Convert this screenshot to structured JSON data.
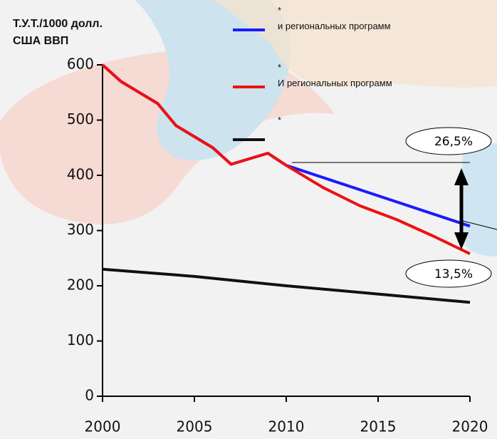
{
  "chart_data": {
    "type": "line",
    "y_label": "Т.У.Т./1000 долл.\nСША ВВП",
    "xlim": [
      2000,
      2020
    ],
    "xticks": [
      2000,
      2005,
      2010,
      2015,
      2020
    ],
    "ylim": [
      0,
      600
    ],
    "yticks": [
      0,
      100,
      200,
      300,
      400,
      500,
      600
    ],
    "series": [
      {
        "name": "*\nи региональных программ",
        "color": "#1a1aff",
        "x": [
          2000,
          2001,
          2002,
          2003,
          2004,
          2005,
          2006,
          2007,
          2008,
          2009,
          2010,
          2020
        ],
        "values": [
          600,
          570,
          550,
          530,
          490,
          470,
          450,
          420,
          430,
          440,
          418,
          308
        ]
      },
      {
        "name": "*\nИ региональных программ",
        "color": "#ee1111",
        "x": [
          2000,
          2001,
          2002,
          2003,
          2004,
          2005,
          2006,
          2007,
          2008,
          2009,
          2010,
          2012,
          2014,
          2016,
          2018,
          2020
        ],
        "values": [
          600,
          570,
          550,
          530,
          490,
          470,
          450,
          420,
          430,
          440,
          418,
          378,
          345,
          320,
          290,
          258
        ]
      },
      {
        "name": "*",
        "color": "#111111",
        "x": [
          2000,
          2005,
          2010,
          2015,
          2020
        ],
        "values": [
          230,
          217,
          200,
          185,
          170
        ]
      }
    ],
    "annotations": [
      "26,5%",
      "13,5%"
    ]
  }
}
